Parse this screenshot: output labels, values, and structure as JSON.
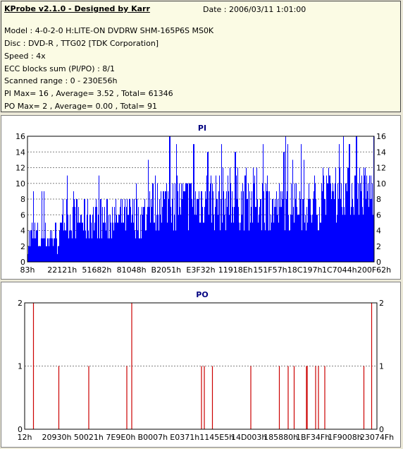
{
  "header": {
    "title": "KProbe v2.1.0 - Designed by Karr",
    "date": "Date : 2006/03/11 1:01:00",
    "model": "Model : 4-0-2-0 H:LITE-ON DVDRW SHM-165P6S MS0K",
    "disc": "Disc : DVD-R , TTG02 [TDK Corporation]",
    "speed": "Speed : 4x",
    "ecc": "ECC blocks sum (PI/PO) : 8/1",
    "range": "Scanned range : 0 - 230E56h",
    "pi_summary": "PI Max= 16 , Average= 3.52 , Total= 61346",
    "po_summary": "PO Max= 2 , Average= 0.00 , Total= 91"
  },
  "colors": {
    "pi_fill": "#0000ff",
    "po_line": "#cc0000",
    "grid": "#808080"
  },
  "chart_data": [
    {
      "type": "bar",
      "title": "PI",
      "ylim": [
        0,
        16
      ],
      "yticks": [
        0,
        2,
        4,
        6,
        8,
        10,
        12,
        14,
        16
      ],
      "xlim": [
        131,
        2297430
      ],
      "xticks": [
        "83h",
        "22121h",
        "51682h",
        "81048h",
        "B2051h",
        "E3F32h",
        "11918Eh",
        "151F57h",
        "18C197h",
        "1C7044h",
        "200F62h"
      ],
      "series_color": "#0000ff",
      "segments": [
        {
          "range": [
            0.0,
            0.1
          ],
          "base": 3.0,
          "spread": 2.2
        },
        {
          "range": [
            0.1,
            0.35
          ],
          "base": 5.2,
          "spread": 3.0
        },
        {
          "range": [
            0.35,
            0.5
          ],
          "base": 7.2,
          "spread": 3.5
        },
        {
          "range": [
            0.5,
            0.7
          ],
          "base": 7.6,
          "spread": 3.8
        },
        {
          "range": [
            0.7,
            0.85
          ],
          "base": 6.6,
          "spread": 3.2
        },
        {
          "range": [
            0.85,
            1.0
          ],
          "base": 8.6,
          "spread": 3.6
        }
      ],
      "peaks": [
        {
          "x": 0.41,
          "y": 16
        },
        {
          "x": 0.43,
          "y": 15
        },
        {
          "x": 0.48,
          "y": 15
        },
        {
          "x": 0.52,
          "y": 14
        },
        {
          "x": 0.56,
          "y": 15
        },
        {
          "x": 0.6,
          "y": 14
        },
        {
          "x": 0.68,
          "y": 15
        },
        {
          "x": 0.74,
          "y": 14
        },
        {
          "x": 0.79,
          "y": 15
        },
        {
          "x": 0.9,
          "y": 15
        },
        {
          "x": 0.93,
          "y": 15
        },
        {
          "x": 0.95,
          "y": 16
        }
      ]
    },
    {
      "type": "bar",
      "title": "PO",
      "ylim": [
        0,
        2
      ],
      "yticks": [
        0,
        1,
        2
      ],
      "xlim": [
        18,
        2297460
      ],
      "xticks": [
        "12h",
        "20930h",
        "50021h",
        "7E9E0h",
        "B0007h",
        "E0371h",
        "1145E5h",
        "14D003h",
        "185880h",
        "1BF34Fh",
        "1F9008h",
        "23074Fh"
      ],
      "series_color": "#cc0000",
      "spikes": [
        {
          "x": 0.025,
          "value": 2
        },
        {
          "x": 0.097,
          "value": 1
        },
        {
          "x": 0.182,
          "value": 1
        },
        {
          "x": 0.29,
          "value": 1
        },
        {
          "x": 0.304,
          "value": 2
        },
        {
          "x": 0.502,
          "value": 1
        },
        {
          "x": 0.51,
          "value": 1
        },
        {
          "x": 0.533,
          "value": 1
        },
        {
          "x": 0.642,
          "value": 1
        },
        {
          "x": 0.723,
          "value": 1
        },
        {
          "x": 0.748,
          "value": 1
        },
        {
          "x": 0.765,
          "value": 1
        },
        {
          "x": 0.8,
          "value": 1
        },
        {
          "x": 0.802,
          "value": 1
        },
        {
          "x": 0.826,
          "value": 1
        },
        {
          "x": 0.834,
          "value": 1
        },
        {
          "x": 0.852,
          "value": 1
        },
        {
          "x": 0.963,
          "value": 1
        },
        {
          "x": 0.985,
          "value": 2
        }
      ]
    }
  ]
}
